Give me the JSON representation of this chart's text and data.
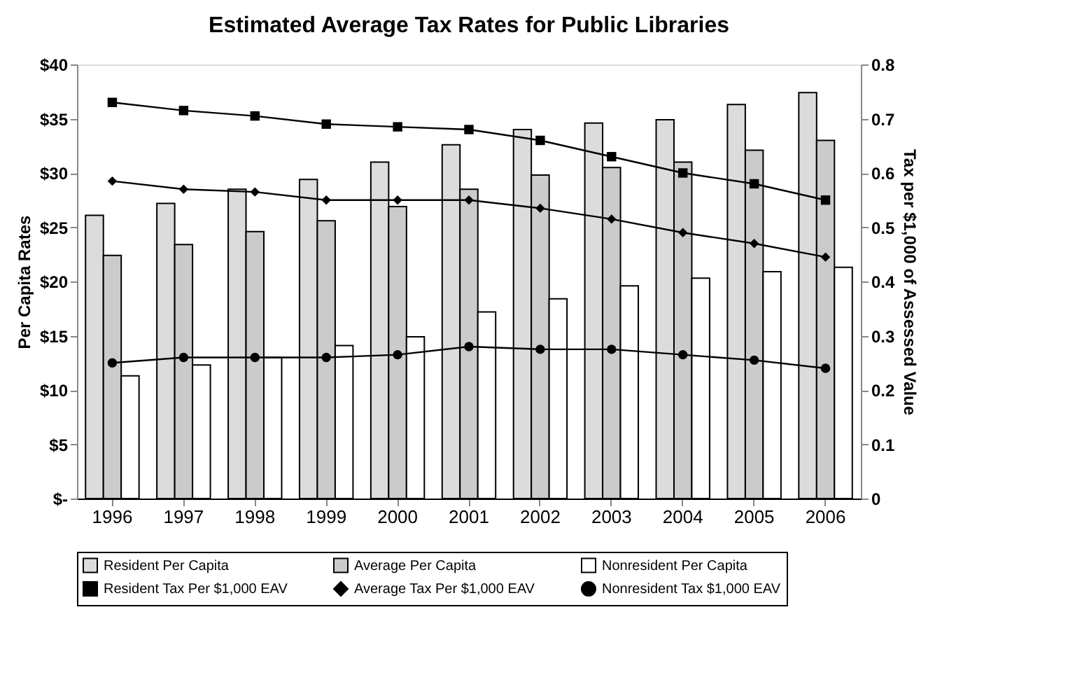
{
  "chart_data": {
    "type": "bar",
    "title": "Estimated Average Tax Rates for Public Libraries",
    "ylabel": "Per Capita Rates",
    "y2label": "Tax per $1,000 of Assessed Value",
    "categories": [
      "1996",
      "1997",
      "1998",
      "1999",
      "2000",
      "2001",
      "2002",
      "2003",
      "2004",
      "2005",
      "2006"
    ],
    "series": [
      {
        "name": "Resident Per Capita",
        "color": "#dcdcdc",
        "values": [
          26.1,
          27.2,
          28.5,
          29.4,
          31.0,
          32.6,
          34.0,
          34.6,
          34.9,
          36.3,
          37.4
        ]
      },
      {
        "name": "Average Per Capita",
        "color": "#cbcbcb",
        "values": [
          22.4,
          23.4,
          24.6,
          25.6,
          26.9,
          28.5,
          29.8,
          30.5,
          31.0,
          32.1,
          33.0
        ]
      },
      {
        "name": "Nonresident Per Capita",
        "color": "#ffffff",
        "values": [
          11.3,
          12.3,
          13.0,
          14.1,
          14.9,
          17.2,
          18.4,
          19.6,
          20.3,
          20.9,
          21.3
        ]
      },
      {
        "name": "Resident Tax Per $1,000 EAV",
        "type": "line",
        "axis": "y2",
        "marker": "square",
        "color": "#000000",
        "values": [
          0.73,
          0.715,
          0.705,
          0.69,
          0.685,
          0.68,
          0.66,
          0.63,
          0.6,
          0.58,
          0.55
        ]
      },
      {
        "name": "Average Tax Per $1,000 EAV",
        "type": "line",
        "axis": "y2",
        "marker": "diamond",
        "color": "#000000",
        "values": [
          0.585,
          0.57,
          0.565,
          0.55,
          0.55,
          0.55,
          0.535,
          0.515,
          0.49,
          0.47,
          0.445
        ]
      },
      {
        "name": "Nonresident Tax $1,000 EAV",
        "type": "line",
        "axis": "y2",
        "marker": "circle",
        "color": "#000000",
        "values": [
          0.25,
          0.26,
          0.26,
          0.26,
          0.265,
          0.28,
          0.275,
          0.275,
          0.265,
          0.255,
          0.24
        ]
      }
    ],
    "ylim": [
      0,
      40
    ],
    "yticks": [
      {
        "value": 0,
        "label": "$-"
      },
      {
        "value": 5,
        "label": "$5"
      },
      {
        "value": 10,
        "label": "$10"
      },
      {
        "value": 15,
        "label": "$15"
      },
      {
        "value": 20,
        "label": "$20"
      },
      {
        "value": 25,
        "label": "$25"
      },
      {
        "value": 30,
        "label": "$30"
      },
      {
        "value": 35,
        "label": "$35"
      },
      {
        "value": 40,
        "label": "$40"
      }
    ],
    "y2lim": [
      0,
      0.8
    ],
    "y2ticks": [
      {
        "value": 0,
        "label": "0"
      },
      0.1,
      0.2,
      0.3,
      0.4,
      0.5,
      0.6,
      0.7,
      0.8
    ],
    "legend": "bottom"
  }
}
